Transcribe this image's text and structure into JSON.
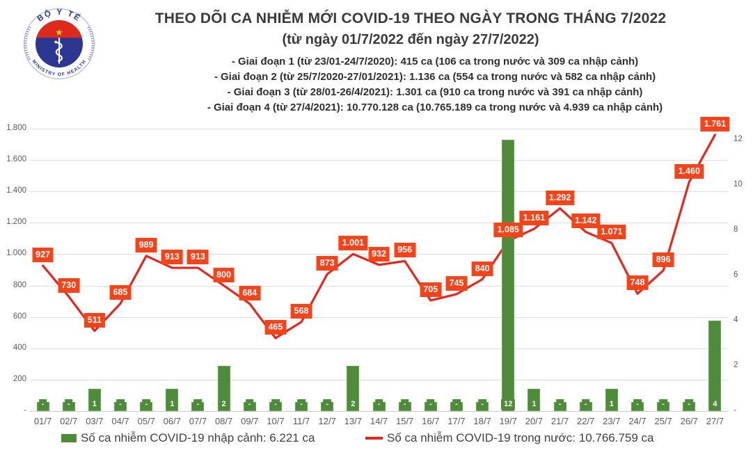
{
  "logo": {
    "top_text": "BỘ Y TẾ",
    "bottom_text": "MINISTRY OF HEALTH",
    "colors": {
      "blue": "#2c3792",
      "red": "#dd2a1d",
      "star_yellow": "#ffd21f"
    }
  },
  "header": {
    "title": "THEO DÕI CA NHIỄM MỚI COVID-19 THEO NGÀY TRONG THÁNG 7/2022",
    "subtitle": "(từ ngày 01/7/2022 đến ngày 27/7/2022)",
    "notes": [
      "- Giai đoạn 1 (từ 23/01-24/7/2020): 415 ca (106 ca trong nước và 309 ca nhập cảnh)",
      "- Giai đoạn 2 (từ 25/7/2020-27/01/2021): 1.136 ca (554 ca trong nước và 582 ca nhập cảnh)",
      "- Giai đoạn 3 (từ 28/01-26/4/2021): 1.301 ca (910 ca trong nước và 391 ca nhập cảnh)",
      "- Giai đoạn 4 (từ 27/4/2021): 10.770.128 ca (10.765.189 ca trong nước và 4.939 ca nhập cảnh)"
    ]
  },
  "chart_data": {
    "type": "combo",
    "title": "THEO DÕI CA NHIỄM MỚI COVID-19 THEO NGÀY TRONG THÁNG 7/2022",
    "subtitle": "(từ ngày 01/7/2022 đến ngày 27/7/2022)",
    "categories": [
      "01/7",
      "02/7",
      "03/7",
      "04/7",
      "05/7",
      "06/7",
      "07/7",
      "08/7",
      "09/7",
      "10/7",
      "11/7",
      "12/7",
      "13/7",
      "14/7",
      "15/7",
      "16/7",
      "17/7",
      "18/7",
      "19/7",
      "20/7",
      "21/7",
      "22/7",
      "23/7",
      "24/7",
      "25/7",
      "26/7",
      "27/7"
    ],
    "series": [
      {
        "name": "Số ca nhiễm COVID-19 nhập cảnh",
        "type": "bar",
        "axis": "right",
        "color": "#4e8c3b",
        "values": [
          0,
          0,
          1,
          0,
          0,
          1,
          0,
          2,
          0,
          0,
          0,
          0,
          2,
          0,
          0,
          0,
          0,
          0,
          12,
          1,
          0,
          0,
          1,
          0,
          0,
          0,
          4
        ],
        "labels": [
          "-",
          "-",
          "1",
          "-",
          "-",
          "1",
          "-",
          "2",
          "-",
          "-",
          "-",
          "-",
          "2",
          "-",
          "-",
          "-",
          "-",
          "-",
          "12",
          "1",
          "-",
          "-",
          "1",
          "-",
          "-",
          "-",
          "4"
        ]
      },
      {
        "name": "Số ca nhiễm COVID-19 trong nước",
        "type": "line",
        "axis": "left",
        "color": "#e6261d",
        "label_bg": "#f5431a",
        "values": [
          927,
          730,
          511,
          685,
          989,
          913,
          913,
          800,
          684,
          465,
          568,
          873,
          1001,
          932,
          956,
          705,
          745,
          840,
          1085,
          1161,
          1292,
          1142,
          1071,
          748,
          896,
          1460,
          1761
        ],
        "labels": [
          "927",
          "730",
          "511",
          "685",
          "989",
          "913",
          "913",
          "800",
          "684",
          "465",
          "568",
          "873",
          "1.001",
          "932",
          "956",
          "705",
          "745",
          "840",
          "1.085",
          "1.161",
          "1.292",
          "1.142",
          "1.071",
          "748",
          "896",
          "1.460",
          "1.761"
        ]
      }
    ],
    "left_axis": {
      "min": 0,
      "max": 1800,
      "tick_step": 200,
      "tick_labels": [
        "-",
        "200",
        "400",
        "600",
        "800",
        "1.000",
        "1.200",
        "1.400",
        "1.600",
        "1.800"
      ]
    },
    "right_axis": {
      "min": 0,
      "max": 12.5,
      "tick_step": 2,
      "tick_labels": [
        "-",
        "2",
        "4",
        "6",
        "8",
        "10",
        "12"
      ]
    },
    "grid": true,
    "legend_position": "bottom"
  },
  "legend": [
    {
      "label": "Số ca nhiễm COVID-19 nhập cảnh: 6.221 ca",
      "swatch": "bar",
      "color": "#4e8c3b"
    },
    {
      "label": "Số ca nhiễm COVID-19 trong nước: 10.766.759 ca",
      "swatch": "line",
      "color": "#e6261d"
    }
  ]
}
